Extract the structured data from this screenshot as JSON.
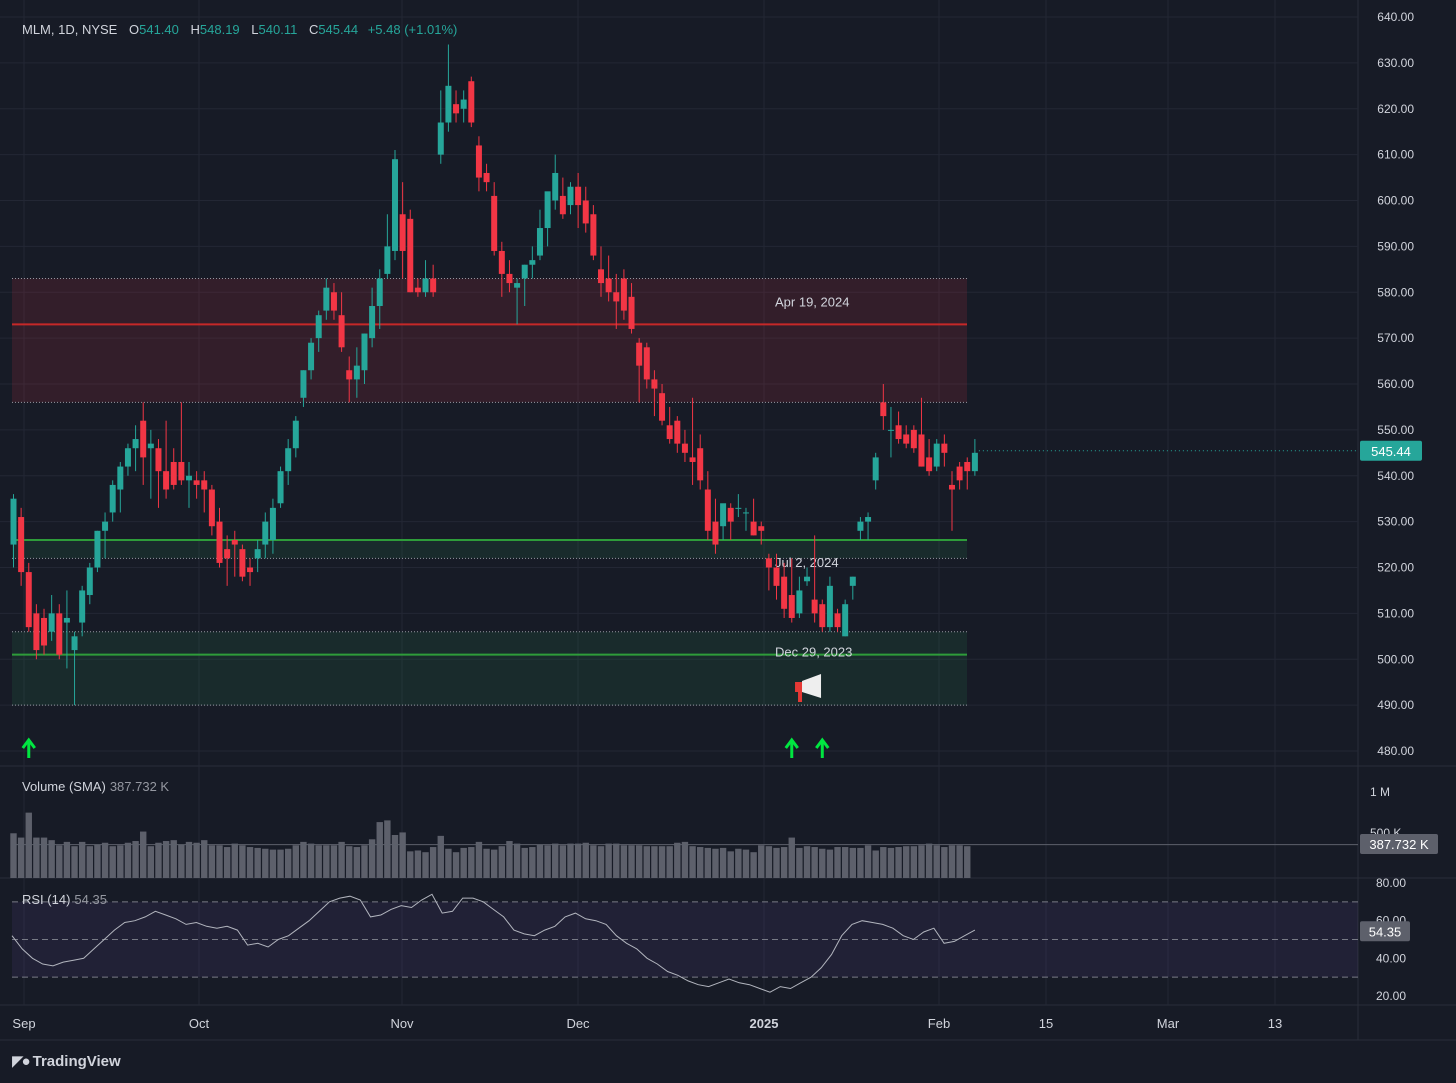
{
  "header": {
    "symbol": "MLM, 1D, NYSE",
    "o_label": "O",
    "o_value": "541.40",
    "h_label": "H",
    "h_value": "548.19",
    "l_label": "L",
    "l_value": "540.11",
    "c_label": "C",
    "c_value": "545.44",
    "change": "+5.48 (+1.01%)"
  },
  "volume_label": "Volume (SMA)",
  "volume_value": "387.732 K",
  "rsi_label": "RSI (14)",
  "rsi_value": "54.35",
  "branding": "TradingView",
  "colors": {
    "background": "#171b26",
    "up": "#26a69a",
    "down": "#f23645",
    "grid": "#232734",
    "resistance_zone": "#f23645",
    "support_zone": "#1b5e20",
    "arrow": "#00e640"
  },
  "chart_data": {
    "type": "candlestick",
    "symbol": "MLM",
    "interval": "1D",
    "exchange": "NYSE",
    "ylim": [
      480,
      640
    ],
    "y_ticks": [
      "640.00",
      "630.00",
      "620.00",
      "610.00",
      "600.00",
      "590.00",
      "580.00",
      "570.00",
      "560.00",
      "550.00",
      "540.00",
      "530.00",
      "520.00",
      "510.00",
      "500.00",
      "490.00",
      "480.00"
    ],
    "x_tick_labels": [
      "Sep",
      "Oct",
      "Nov",
      "Dec",
      "2025",
      "15",
      "Feb",
      "Mar",
      "13"
    ],
    "last_price": "545.44",
    "candles": [
      {
        "o": 525,
        "h": 536,
        "l": 520,
        "c": 535
      },
      {
        "o": 531,
        "h": 533,
        "l": 516,
        "c": 519
      },
      {
        "o": 519,
        "h": 521,
        "l": 506,
        "c": 507
      },
      {
        "o": 510,
        "h": 512,
        "l": 500,
        "c": 502
      },
      {
        "o": 509,
        "h": 511,
        "l": 501,
        "c": 503
      },
      {
        "o": 506,
        "h": 514,
        "l": 504,
        "c": 510
      },
      {
        "o": 510,
        "h": 512,
        "l": 500,
        "c": 501
      },
      {
        "o": 508,
        "h": 515,
        "l": 498,
        "c": 509
      },
      {
        "o": 502,
        "h": 506,
        "l": 490,
        "c": 505
      },
      {
        "o": 508,
        "h": 516,
        "l": 505,
        "c": 515
      },
      {
        "o": 514,
        "h": 521,
        "l": 512,
        "c": 520
      },
      {
        "o": 520,
        "h": 528,
        "l": 519,
        "c": 528
      },
      {
        "o": 528,
        "h": 532,
        "l": 522,
        "c": 530
      },
      {
        "o": 532,
        "h": 539,
        "l": 530,
        "c": 538
      },
      {
        "o": 537,
        "h": 543,
        "l": 532,
        "c": 542
      },
      {
        "o": 542,
        "h": 547,
        "l": 540,
        "c": 546
      },
      {
        "o": 546,
        "h": 551,
        "l": 541,
        "c": 548
      },
      {
        "o": 552,
        "h": 556,
        "l": 538,
        "c": 544
      },
      {
        "o": 546,
        "h": 550,
        "l": 535,
        "c": 547
      },
      {
        "o": 546,
        "h": 548,
        "l": 533,
        "c": 541
      },
      {
        "o": 541,
        "h": 552,
        "l": 535,
        "c": 537
      },
      {
        "o": 543,
        "h": 546,
        "l": 537,
        "c": 538
      },
      {
        "o": 543,
        "h": 556,
        "l": 538,
        "c": 539
      },
      {
        "o": 539,
        "h": 543,
        "l": 533,
        "c": 540
      },
      {
        "o": 539,
        "h": 541,
        "l": 535,
        "c": 538
      },
      {
        "o": 539,
        "h": 541,
        "l": 532,
        "c": 537
      },
      {
        "o": 537,
        "h": 538,
        "l": 527,
        "c": 529
      },
      {
        "o": 530,
        "h": 533,
        "l": 520,
        "c": 521
      },
      {
        "o": 524,
        "h": 527,
        "l": 516,
        "c": 522
      },
      {
        "o": 526,
        "h": 528,
        "l": 518,
        "c": 525
      },
      {
        "o": 524,
        "h": 525,
        "l": 517,
        "c": 518
      },
      {
        "o": 520,
        "h": 522,
        "l": 516,
        "c": 519
      },
      {
        "o": 522,
        "h": 526,
        "l": 519,
        "c": 524
      },
      {
        "o": 525,
        "h": 532,
        "l": 522,
        "c": 530
      },
      {
        "o": 526,
        "h": 535,
        "l": 523,
        "c": 533
      },
      {
        "o": 534,
        "h": 542,
        "l": 533,
        "c": 541
      },
      {
        "o": 541,
        "h": 548,
        "l": 538,
        "c": 546
      },
      {
        "o": 546,
        "h": 553,
        "l": 544,
        "c": 552
      },
      {
        "o": 557,
        "h": 563,
        "l": 555,
        "c": 563
      },
      {
        "o": 563,
        "h": 570,
        "l": 561,
        "c": 569
      },
      {
        "o": 570,
        "h": 576,
        "l": 567,
        "c": 575
      },
      {
        "o": 576,
        "h": 583,
        "l": 574,
        "c": 581
      },
      {
        "o": 580,
        "h": 582,
        "l": 574,
        "c": 576
      },
      {
        "o": 575,
        "h": 580,
        "l": 567,
        "c": 568
      },
      {
        "o": 563,
        "h": 566,
        "l": 556,
        "c": 561
      },
      {
        "o": 561,
        "h": 568,
        "l": 557,
        "c": 564
      },
      {
        "o": 563,
        "h": 571,
        "l": 560,
        "c": 571
      },
      {
        "o": 570,
        "h": 581,
        "l": 568,
        "c": 577
      },
      {
        "o": 577,
        "h": 585,
        "l": 572,
        "c": 583
      },
      {
        "o": 584,
        "h": 597,
        "l": 583,
        "c": 590
      },
      {
        "o": 589,
        "h": 611,
        "l": 587,
        "c": 609
      },
      {
        "o": 597,
        "h": 604,
        "l": 583,
        "c": 589
      },
      {
        "o": 596,
        "h": 598,
        "l": 580,
        "c": 580
      },
      {
        "o": 581,
        "h": 583,
        "l": 579,
        "c": 580
      },
      {
        "o": 580,
        "h": 587,
        "l": 579,
        "c": 583
      },
      {
        "o": 583,
        "h": 586,
        "l": 579,
        "c": 580
      },
      {
        "o": 610,
        "h": 624,
        "l": 608,
        "c": 617
      },
      {
        "o": 617,
        "h": 634,
        "l": 615,
        "c": 625
      },
      {
        "o": 621,
        "h": 624,
        "l": 617,
        "c": 619
      },
      {
        "o": 620,
        "h": 624,
        "l": 617,
        "c": 622
      },
      {
        "o": 626,
        "h": 627,
        "l": 616,
        "c": 617
      },
      {
        "o": 612,
        "h": 614,
        "l": 602,
        "c": 605
      },
      {
        "o": 606,
        "h": 608,
        "l": 602,
        "c": 604
      },
      {
        "o": 601,
        "h": 604,
        "l": 588,
        "c": 589
      },
      {
        "o": 589,
        "h": 591,
        "l": 579,
        "c": 584
      },
      {
        "o": 584,
        "h": 587,
        "l": 580,
        "c": 582
      },
      {
        "o": 581,
        "h": 583,
        "l": 573,
        "c": 582
      },
      {
        "o": 583,
        "h": 586,
        "l": 577,
        "c": 586
      },
      {
        "o": 586,
        "h": 590,
        "l": 583,
        "c": 587
      },
      {
        "o": 588,
        "h": 598,
        "l": 587,
        "c": 594
      },
      {
        "o": 594,
        "h": 601,
        "l": 590,
        "c": 602
      },
      {
        "o": 600,
        "h": 610,
        "l": 598,
        "c": 606
      },
      {
        "o": 601,
        "h": 605,
        "l": 596,
        "c": 597
      },
      {
        "o": 599,
        "h": 604,
        "l": 597,
        "c": 603
      },
      {
        "o": 603,
        "h": 606,
        "l": 594,
        "c": 599
      },
      {
        "o": 600,
        "h": 603,
        "l": 593,
        "c": 595
      },
      {
        "o": 597,
        "h": 599,
        "l": 587,
        "c": 588
      },
      {
        "o": 585,
        "h": 590,
        "l": 579,
        "c": 582
      },
      {
        "o": 583,
        "h": 588,
        "l": 578,
        "c": 580
      },
      {
        "o": 580,
        "h": 584,
        "l": 572,
        "c": 578
      },
      {
        "o": 583,
        "h": 585,
        "l": 574,
        "c": 576
      },
      {
        "o": 579,
        "h": 582,
        "l": 571,
        "c": 572
      },
      {
        "o": 569,
        "h": 570,
        "l": 556,
        "c": 564
      },
      {
        "o": 568,
        "h": 569,
        "l": 559,
        "c": 561
      },
      {
        "o": 561,
        "h": 563,
        "l": 553,
        "c": 559
      },
      {
        "o": 558,
        "h": 560,
        "l": 551,
        "c": 552
      },
      {
        "o": 551,
        "h": 555,
        "l": 547,
        "c": 548
      },
      {
        "o": 552,
        "h": 553,
        "l": 545,
        "c": 547
      },
      {
        "o": 547,
        "h": 550,
        "l": 543,
        "c": 545
      },
      {
        "o": 544,
        "h": 557,
        "l": 538,
        "c": 543
      },
      {
        "o": 546,
        "h": 549,
        "l": 537,
        "c": 539
      },
      {
        "o": 537,
        "h": 541,
        "l": 526,
        "c": 528
      },
      {
        "o": 530,
        "h": 535,
        "l": 523,
        "c": 525
      },
      {
        "o": 529,
        "h": 533,
        "l": 526,
        "c": 534
      },
      {
        "o": 533,
        "h": 534,
        "l": 526,
        "c": 530
      },
      {
        "o": 533,
        "h": 536,
        "l": 531,
        "c": 533
      },
      {
        "o": 532,
        "h": 533,
        "l": 528,
        "c": 532
      },
      {
        "o": 530,
        "h": 535,
        "l": 527,
        "c": 527
      },
      {
        "o": 529,
        "h": 530,
        "l": 525,
        "c": 528
      },
      {
        "o": 522,
        "h": 523,
        "l": 515,
        "c": 520
      },
      {
        "o": 520,
        "h": 523,
        "l": 513,
        "c": 516
      },
      {
        "o": 518,
        "h": 521,
        "l": 509,
        "c": 511
      },
      {
        "o": 514,
        "h": 522,
        "l": 508,
        "c": 509
      },
      {
        "o": 510,
        "h": 518,
        "l": 509,
        "c": 515
      },
      {
        "o": 517,
        "h": 520,
        "l": 516,
        "c": 518
      },
      {
        "o": 513,
        "h": 527,
        "l": 508,
        "c": 510
      },
      {
        "o": 512,
        "h": 513,
        "l": 506,
        "c": 507
      },
      {
        "o": 507,
        "h": 518,
        "l": 506,
        "c": 516
      },
      {
        "o": 510,
        "h": 511,
        "l": 506,
        "c": 507
      },
      {
        "o": 505,
        "h": 513,
        "l": 505,
        "c": 512
      },
      {
        "o": 516,
        "h": 518,
        "l": 513,
        "c": 518
      },
      {
        "o": 528,
        "h": 531,
        "l": 526,
        "c": 530
      },
      {
        "o": 530,
        "h": 532,
        "l": 526,
        "c": 531
      },
      {
        "o": 539,
        "h": 545,
        "l": 537,
        "c": 544
      },
      {
        "o": 556,
        "h": 560,
        "l": 550,
        "c": 553
      },
      {
        "o": 550,
        "h": 555,
        "l": 544,
        "c": 550
      },
      {
        "o": 551,
        "h": 554,
        "l": 547,
        "c": 548
      },
      {
        "o": 549,
        "h": 551,
        "l": 546,
        "c": 547
      },
      {
        "o": 550,
        "h": 551,
        "l": 545,
        "c": 546
      },
      {
        "o": 549,
        "h": 557,
        "l": 542,
        "c": 542
      },
      {
        "o": 544,
        "h": 548,
        "l": 540,
        "c": 541
      },
      {
        "o": 542,
        "h": 548,
        "l": 541,
        "c": 547
      },
      {
        "o": 547,
        "h": 549,
        "l": 542,
        "c": 545
      },
      {
        "o": 538,
        "h": 541,
        "l": 528,
        "c": 537
      },
      {
        "o": 542,
        "h": 543,
        "l": 537,
        "c": 539
      },
      {
        "o": 543,
        "h": 544,
        "l": 537,
        "c": 541
      },
      {
        "o": 541,
        "h": 548,
        "l": 540,
        "c": 545
      }
    ],
    "zones": [
      {
        "label": "Apr 19, 2024",
        "top": 583,
        "bottom": 556,
        "line": 573,
        "color": "red"
      },
      {
        "label": "Jul 2, 2024",
        "top": 526,
        "bottom": 522,
        "line": 526,
        "color": "green"
      },
      {
        "label": "Dec 29, 2023",
        "top": 506,
        "bottom": 490,
        "line": 501,
        "color": "green"
      }
    ],
    "volume": {
      "label": "Volume (SMA)",
      "sma_value": "387.732 K",
      "ticks": [
        "1 M",
        "500 K"
      ],
      "values": [
        520,
        470,
        760,
        470,
        470,
        440,
        380,
        420,
        370,
        420,
        370,
        390,
        410,
        370,
        380,
        410,
        430,
        540,
        370,
        410,
        430,
        440,
        390,
        420,
        410,
        440,
        380,
        380,
        360,
        400,
        380,
        360,
        350,
        340,
        330,
        330,
        340,
        380,
        420,
        400,
        380,
        380,
        380,
        420,
        370,
        360,
        380,
        450,
        650,
        670,
        500,
        530,
        310,
        320,
        300,
        360,
        490,
        340,
        300,
        350,
        360,
        420,
        340,
        330,
        370,
        430,
        400,
        350,
        360,
        390,
        380,
        400,
        380,
        400,
        400,
        410,
        380,
        370,
        400,
        400,
        380,
        380,
        380,
        370,
        370,
        370,
        370,
        410,
        420,
        370,
        360,
        350,
        340,
        350,
        310,
        340,
        330,
        300,
        380,
        370,
        350,
        360,
        470,
        350,
        370,
        360,
        340,
        330,
        360,
        360,
        350,
        350,
        380,
        320,
        360,
        350,
        360,
        370,
        370,
        380,
        400,
        380,
        360,
        380,
        380,
        370
      ]
    },
    "rsi": {
      "label": "RSI (14)",
      "value": "54.35",
      "ticks": [
        "80.00",
        "60.00",
        "40.00",
        "20.00"
      ],
      "bands": [
        70,
        50,
        30
      ],
      "values": [
        52,
        45,
        40,
        37,
        36,
        38,
        39,
        40,
        45,
        50,
        55,
        59,
        60,
        62,
        65,
        63,
        61,
        58,
        59,
        57,
        56,
        57,
        55,
        47,
        48,
        46,
        50,
        52,
        56,
        60,
        65,
        70,
        72,
        73,
        71,
        62,
        63,
        66,
        68,
        67,
        71,
        74,
        64,
        65,
        72,
        72,
        70,
        66,
        62,
        55,
        53,
        52,
        55,
        57,
        62,
        64,
        61,
        60,
        58,
        52,
        48,
        45,
        40,
        37,
        33,
        31,
        28,
        26,
        25,
        27,
        29,
        27,
        26,
        24,
        22,
        25,
        24,
        27,
        30,
        35,
        42,
        52,
        58,
        60,
        59,
        58,
        56,
        52,
        50,
        54,
        56,
        48,
        49,
        52,
        55
      ]
    },
    "signals": [
      {
        "type": "up-arrow",
        "candle_index": 2
      },
      {
        "type": "up-arrow",
        "candle_index": 102
      },
      {
        "type": "up-arrow",
        "candle_index": 106
      },
      {
        "type": "megaphone",
        "candle_index": 104
      }
    ]
  }
}
